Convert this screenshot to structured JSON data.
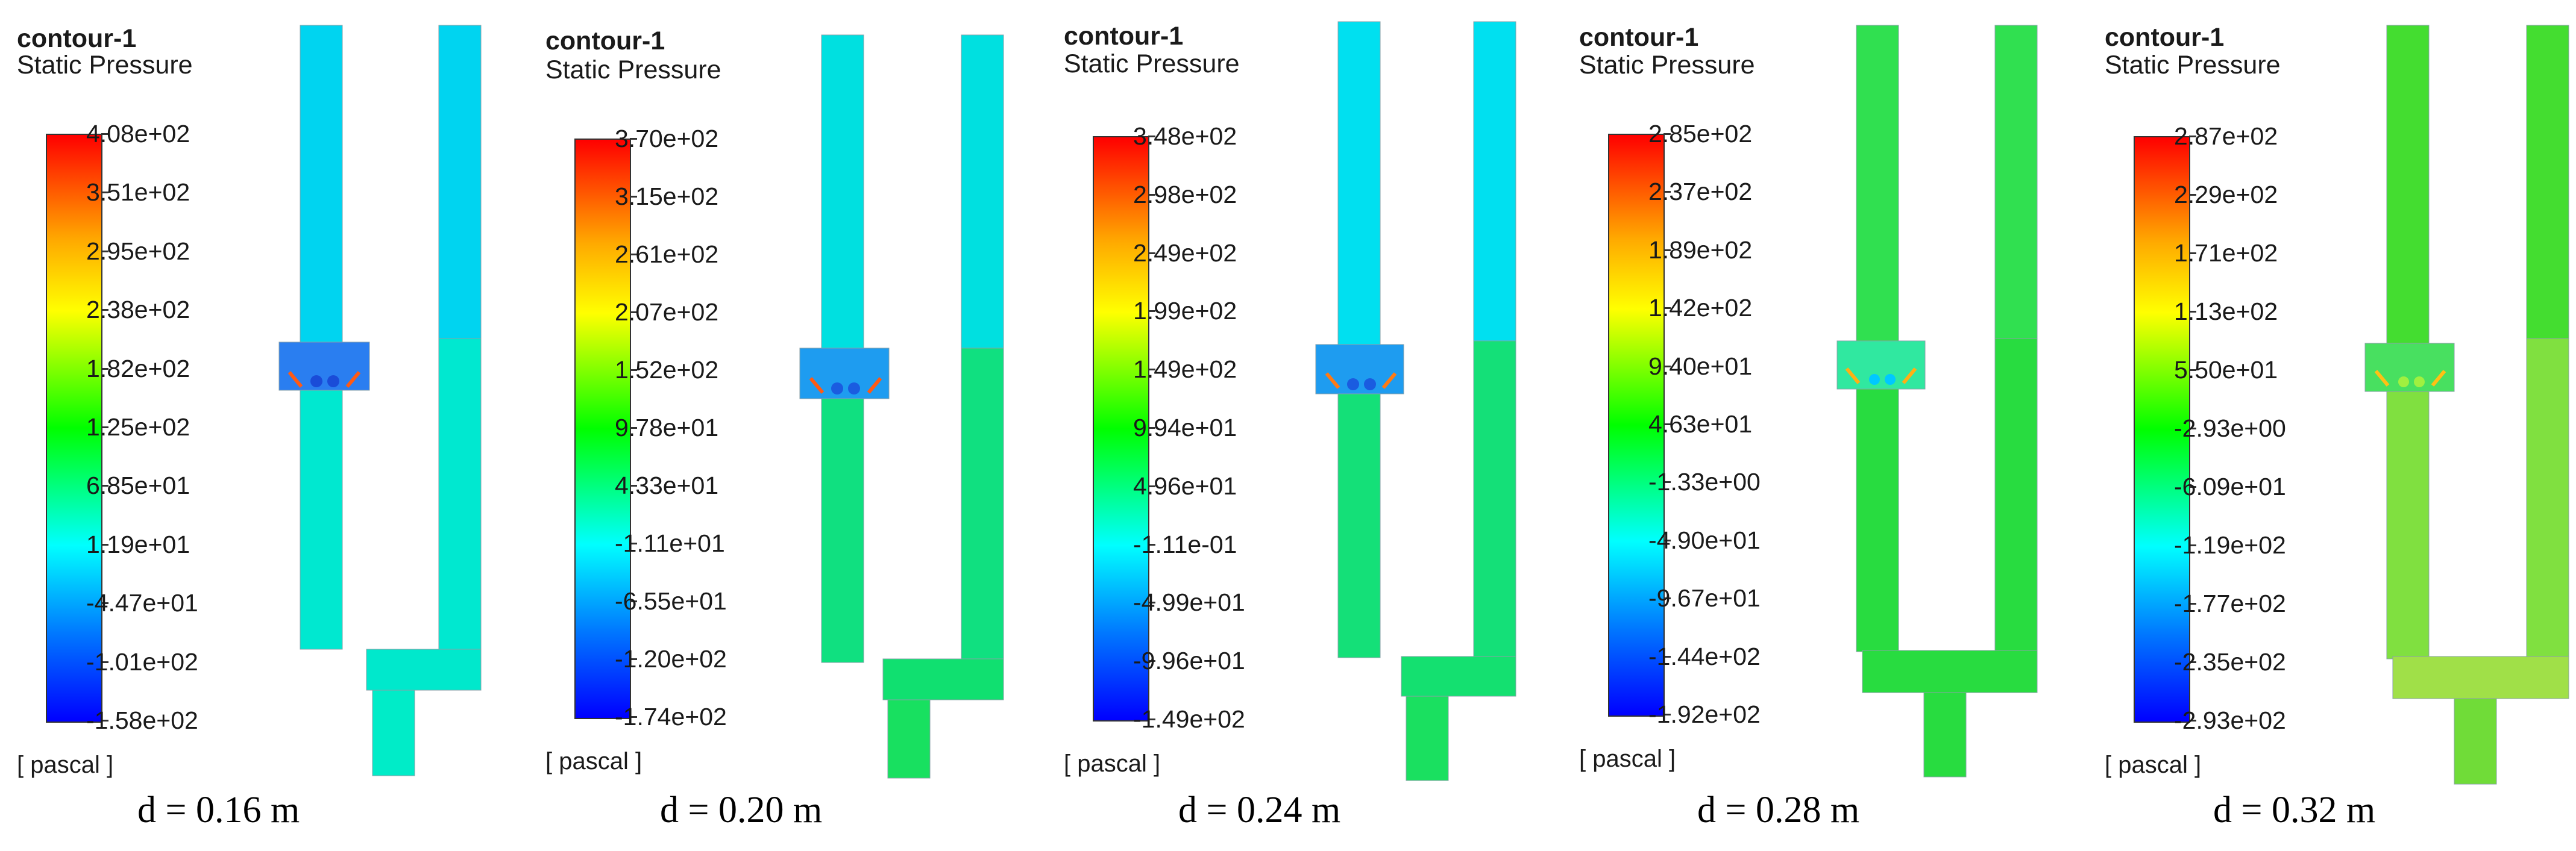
{
  "panels": [
    {
      "title": "contour-1",
      "subtitle": "Static Pressure",
      "unit": "[ pascal ]",
      "caption": "d = 0.16 m",
      "ticks": [
        "4.08e+02",
        "3.51e+02",
        "2.95e+02",
        "2.38e+02",
        "1.82e+02",
        "1.25e+02",
        "6.85e+01",
        "1.19e+01",
        "-4.47e+01",
        "-1.01e+02",
        "-1.58e+02"
      ],
      "colors": {
        "upper_leg": "#00d4f0",
        "lower_leg": "#00e8d0",
        "bottom_bar": "#00e8cc",
        "outlet": "#00ecc8",
        "chamber": "#2a7ef0"
      }
    },
    {
      "title": "contour-1",
      "subtitle": "Static Pressure",
      "unit": "[ pascal ]",
      "caption": "d = 0.20 m",
      "ticks": [
        "3.70e+02",
        "3.15e+02",
        "2.61e+02",
        "2.07e+02",
        "1.52e+02",
        "9.78e+01",
        "4.33e+01",
        "-1.11e+01",
        "-6.55e+01",
        "-1.20e+02",
        "-1.74e+02"
      ],
      "colors": {
        "upper_leg": "#00e0e0",
        "lower_leg": "#10e080",
        "bottom_bar": "#10e070",
        "outlet": "#18e060",
        "chamber": "#1e9cf0"
      }
    },
    {
      "title": "contour-1",
      "subtitle": "Static Pressure",
      "unit": "[ pascal ]",
      "caption": "d = 0.24 m",
      "ticks": [
        "3.48e+02",
        "2.98e+02",
        "2.49e+02",
        "1.99e+02",
        "1.49e+02",
        "9.94e+01",
        "4.96e+01",
        "-1.11e-01",
        "-4.99e+01",
        "-9.96e+01",
        "-1.49e+02"
      ],
      "colors": {
        "upper_leg": "#00e0f0",
        "lower_leg": "#14e078",
        "bottom_bar": "#14e070",
        "outlet": "#1ae060",
        "chamber": "#1e9cf0"
      }
    },
    {
      "title": "contour-1",
      "subtitle": "Static Pressure",
      "unit": "[ pascal ]",
      "caption": "d = 0.28 m",
      "ticks": [
        "2.85e+02",
        "2.37e+02",
        "1.89e+02",
        "1.42e+02",
        "9.40e+01",
        "4.63e+01",
        "-1.33e+00",
        "-4.90e+01",
        "-9.67e+01",
        "-1.44e+02",
        "-1.92e+02"
      ],
      "colors": {
        "upper_leg": "#30e050",
        "lower_leg": "#28dc40",
        "bottom_bar": "#28dc40",
        "outlet": "#28dc40",
        "chamber": "#30e8a0"
      }
    },
    {
      "title": "contour-1",
      "subtitle": "Static Pressure",
      "unit": "[ pascal ]",
      "caption": "d = 0.32 m",
      "ticks": [
        "2.87e+02",
        "2.29e+02",
        "1.71e+02",
        "1.13e+02",
        "5.50e+01",
        "-2.93e+00",
        "-6.09e+01",
        "-1.19e+02",
        "-1.77e+02",
        "-2.35e+02",
        "-2.93e+02"
      ],
      "colors": {
        "upper_leg": "#44dd30",
        "lower_leg": "#80e040",
        "bottom_bar": "#a0e048",
        "outlet": "#70dc38",
        "chamber": "#48e060"
      }
    }
  ]
}
